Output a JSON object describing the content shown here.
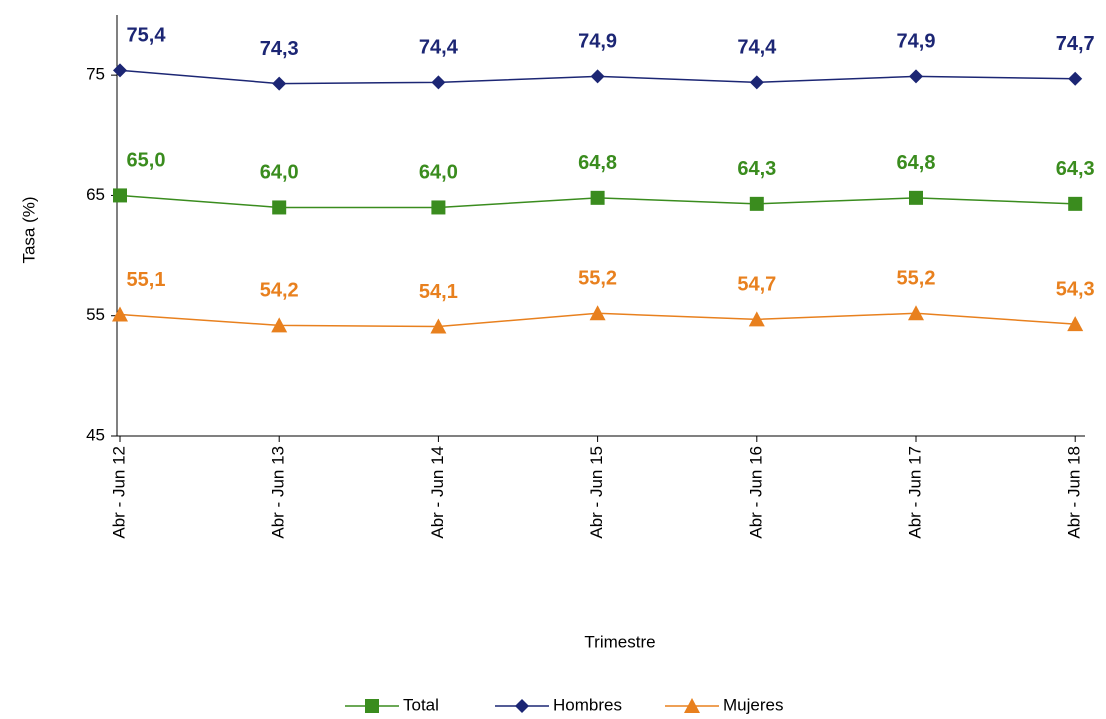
{
  "chart_data": {
    "type": "line",
    "x_label": "Trimestre",
    "y_label": "Tasa (%)",
    "categories": [
      "Abr - Jun 12",
      "Abr - Jun 13",
      "Abr - Jun 14",
      "Abr - Jun 15",
      "Abr - Jun 16",
      "Abr - Jun 17",
      "Abr - Jun 18"
    ],
    "series": [
      {
        "name": "Total",
        "color": "#3a8c1e",
        "marker": "square",
        "values": [
          65.0,
          64.0,
          64.0,
          64.8,
          64.3,
          64.8,
          64.3
        ],
        "value_labels": [
          "65,0",
          "64,0",
          "64,0",
          "64,8",
          "64,3",
          "64,8",
          "64,3"
        ]
      },
      {
        "name": "Hombres",
        "color": "#1c2674",
        "marker": "diamond",
        "values": [
          75.4,
          74.3,
          74.4,
          74.9,
          74.4,
          74.9,
          74.7
        ],
        "value_labels": [
          "75,4",
          "74,3",
          "74,4",
          "74,9",
          "74,4",
          "74,9",
          "74,7"
        ]
      },
      {
        "name": "Mujeres",
        "color": "#e8801e",
        "marker": "triangle",
        "values": [
          55.1,
          54.2,
          54.1,
          55.2,
          54.7,
          55.2,
          54.3
        ],
        "value_labels": [
          "55,1",
          "54,2",
          "54,1",
          "55,2",
          "54,7",
          "55,2",
          "54,3"
        ]
      }
    ],
    "ylim": [
      45,
      80
    ],
    "yticks": [
      45,
      55,
      65,
      75
    ],
    "grid": false,
    "legend": "bottom"
  }
}
